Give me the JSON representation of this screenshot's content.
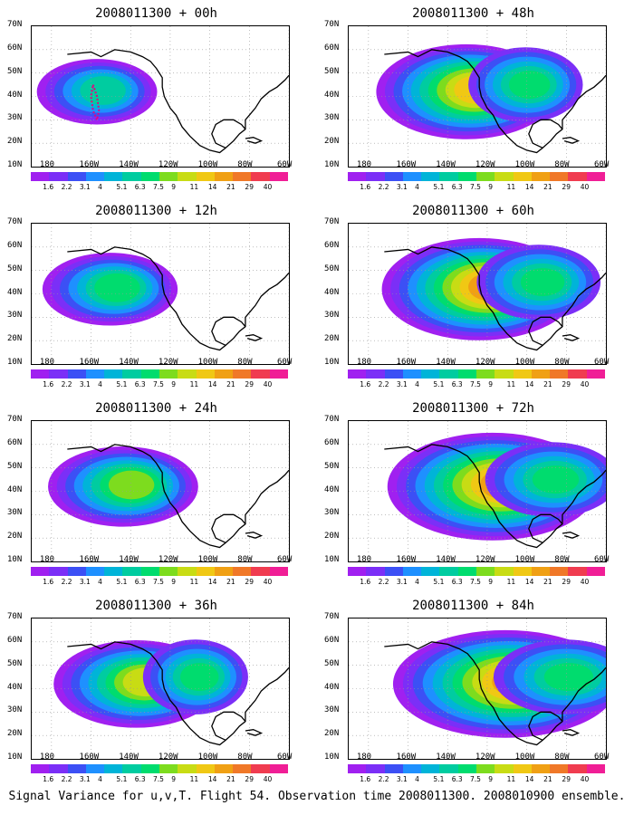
{
  "chart_data": {
    "type": "heatmap",
    "caption": "Signal Variance for u,v,T. Flight 54. Observation time 2008011300. 2008010900 ensemble.",
    "lat_ticks": [
      "10N",
      "20N",
      "30N",
      "40N",
      "50N",
      "60N",
      "70N"
    ],
    "lon_ticks": [
      "180",
      "160W",
      "140W",
      "120W",
      "100W",
      "80W",
      "60W"
    ],
    "colorbar": {
      "levels": [
        "1.6",
        "2.2",
        "3.1",
        "4",
        "5.1",
        "6.3",
        "7.5",
        "9",
        "11",
        "14",
        "21",
        "29",
        "40"
      ],
      "colors": [
        "#a020f0",
        "#7b2ff7",
        "#3c50f5",
        "#1e90ff",
        "#00b4d8",
        "#00cca0",
        "#00dc6e",
        "#7ddc1e",
        "#c8dc14",
        "#f0c814",
        "#f0a014",
        "#f07828",
        "#f03c50",
        "#f01e96"
      ]
    },
    "panels": [
      {
        "title": "2008011300 + 00h",
        "lead_hours": 0,
        "max_value": 14,
        "feature": "flight track near 160W 30-45N"
      },
      {
        "title": "2008011300 + 48h",
        "lead_hours": 48,
        "max_value": 14
      },
      {
        "title": "2008011300 + 12h",
        "lead_hours": 12,
        "max_value": 9
      },
      {
        "title": "2008011300 + 60h",
        "lead_hours": 60,
        "max_value": 14
      },
      {
        "title": "2008011300 + 24h",
        "lead_hours": 24,
        "max_value": 11
      },
      {
        "title": "2008011300 + 72h",
        "lead_hours": 72,
        "max_value": 14
      },
      {
        "title": "2008011300 + 36h",
        "lead_hours": 36,
        "max_value": 11
      },
      {
        "title": "2008011300 + 84h",
        "lead_hours": 84,
        "max_value": 14
      }
    ]
  }
}
